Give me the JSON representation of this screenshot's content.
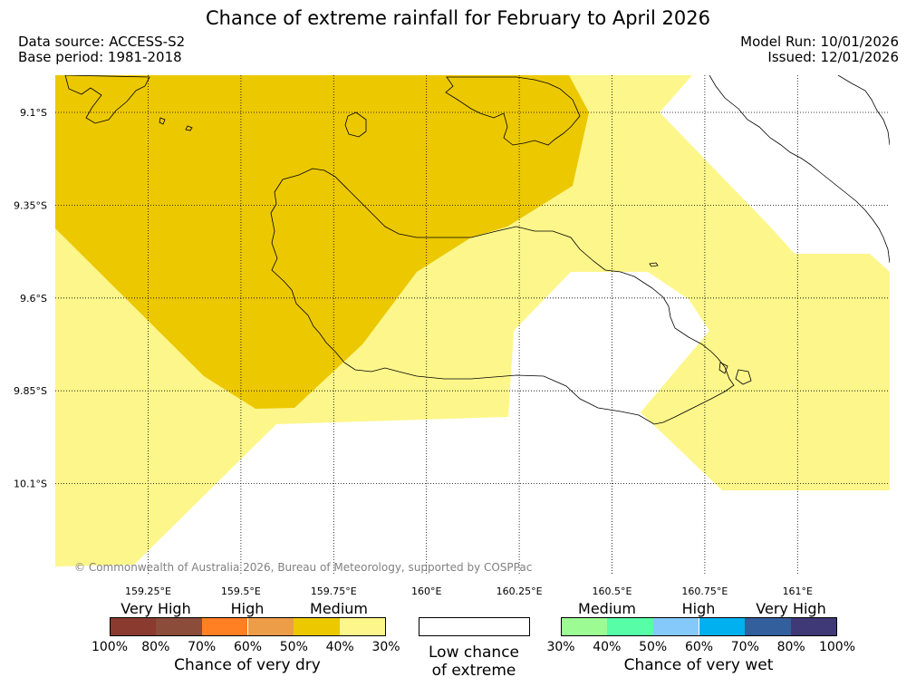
{
  "title": "Chance of extreme rainfall for February to April 2026",
  "meta": {
    "data_source": "Data source: ACCESS-S2",
    "base_period": "Base period: 1981-2018",
    "model_run": "Model Run: 10/01/2026",
    "issued": "Issued: 12/01/2026"
  },
  "map": {
    "lon_range": [
      159.0,
      161.25
    ],
    "lat_range": [
      -10.35,
      -9.0
    ],
    "lon_ticks": [
      {
        "value": 159.25,
        "label": "159.25°E"
      },
      {
        "value": 159.5,
        "label": "159.5°E"
      },
      {
        "value": 159.75,
        "label": "159.75°E"
      },
      {
        "value": 160.0,
        "label": "160°E"
      },
      {
        "value": 160.25,
        "label": "160.25°E"
      },
      {
        "value": 160.5,
        "label": "160.5°E"
      },
      {
        "value": 160.75,
        "label": "160.75°E"
      },
      {
        "value": 161.0,
        "label": "161°E"
      }
    ],
    "lat_ticks": [
      {
        "value": -9.1,
        "label": "9.1°S"
      },
      {
        "value": -9.35,
        "label": "9.35°S"
      },
      {
        "value": -9.6,
        "label": "9.6°S"
      },
      {
        "value": -9.85,
        "label": "9.85°S"
      },
      {
        "value": -10.1,
        "label": "10.1°S"
      }
    ],
    "grid": true,
    "fill_colors": {
      "medium_dry_40_50": "#ecc800",
      "low_dry_30_40": "#fdf68a"
    },
    "copyright": "© Commonwealth of Australia 2026, Bureau of Meteorology, supported by COSPPac"
  },
  "legend": {
    "dry": {
      "title": "Chance of very dry",
      "categories": [
        "Very High",
        "High",
        "Medium"
      ],
      "colors": [
        "#8b3a30",
        "#8b4c3a",
        "#ff7f23",
        "#ed9d48",
        "#ecc800",
        "#fdf68a"
      ],
      "ticks": [
        "100%",
        "80%",
        "70%",
        "60%",
        "50%",
        "40%",
        "30%"
      ]
    },
    "neutral": {
      "title_line1": "Low chance",
      "title_line2": "of extreme",
      "color": "#ffffff"
    },
    "wet": {
      "title": "Chance of very wet",
      "categories": [
        "Medium",
        "High",
        "Very High"
      ],
      "colors": [
        "#9dfb93",
        "#57fda7",
        "#85c9fb",
        "#00b0ef",
        "#335f9c",
        "#3f3977"
      ],
      "ticks": [
        "30%",
        "40%",
        "50%",
        "60%",
        "70%",
        "80%",
        "100%"
      ]
    }
  }
}
